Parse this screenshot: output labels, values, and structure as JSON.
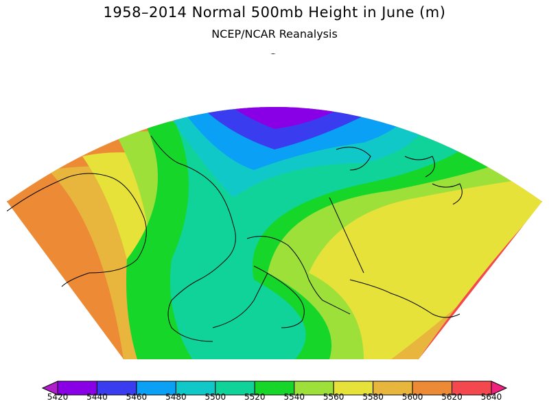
{
  "title": "1958–2014 Normal 500mb Height in June (m)",
  "subtitle": "NCEP/NCAR Reanalysis",
  "colorbar": {
    "labels": [
      "5420",
      "5440",
      "5460",
      "5480",
      "5500",
      "5520",
      "5540",
      "5560",
      "5580",
      "5600",
      "5620",
      "5640"
    ],
    "colors": [
      "#b01ecc",
      "#8a00e6",
      "#3a3cf0",
      "#0aa0f5",
      "#11c8c8",
      "#10d39a",
      "#16d62a",
      "#9de03a",
      "#e6e23a",
      "#e8b63c",
      "#ec8a36",
      "#f2484e",
      "#f0207e"
    ]
  }
}
